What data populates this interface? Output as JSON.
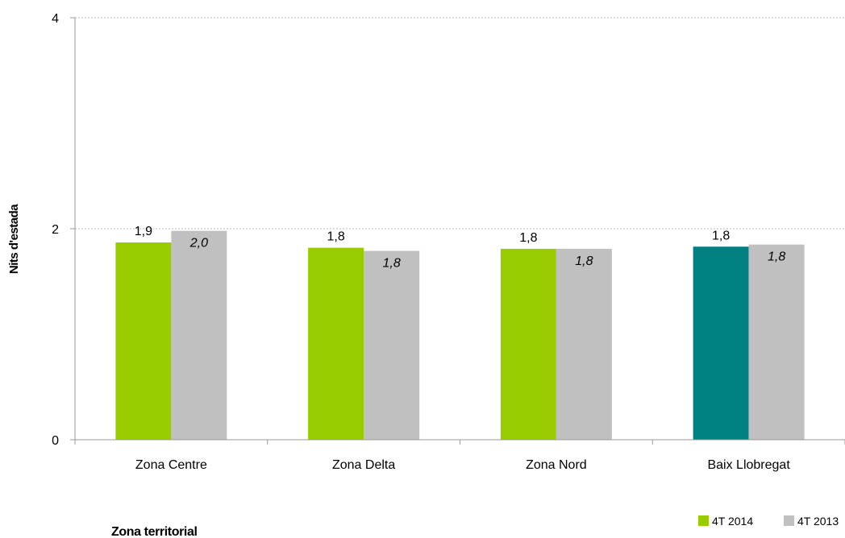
{
  "chart_data": {
    "type": "bar",
    "categories": [
      "Zona Centre",
      "Zona Delta",
      "Zona Nord",
      "Baix Llobregat"
    ],
    "series": [
      {
        "name": "4T 2014",
        "color": "#99cc00",
        "point_colors": [
          "#99cc00",
          "#99cc00",
          "#99cc00",
          "#008080"
        ],
        "values": [
          1.87,
          1.82,
          1.81,
          1.83
        ],
        "labels": [
          "1,9",
          "1,8",
          "1,8",
          "1,8"
        ],
        "label_style": "normal"
      },
      {
        "name": "4T 2013",
        "color": "#c0c0c0",
        "values": [
          1.98,
          1.79,
          1.81,
          1.85
        ],
        "labels": [
          "2,0",
          "1,8",
          "1,8",
          "1,8"
        ],
        "label_style": "italic"
      }
    ],
    "xlabel": "Zona territorial",
    "ylabel": "Nits d'estada",
    "ylim": [
      0,
      4
    ],
    "yticks": [
      0,
      2,
      4
    ],
    "ytick_labels": [
      "0",
      "2",
      "4"
    ],
    "grid": "horizontal dashed",
    "legend_position": "bottom-right"
  }
}
